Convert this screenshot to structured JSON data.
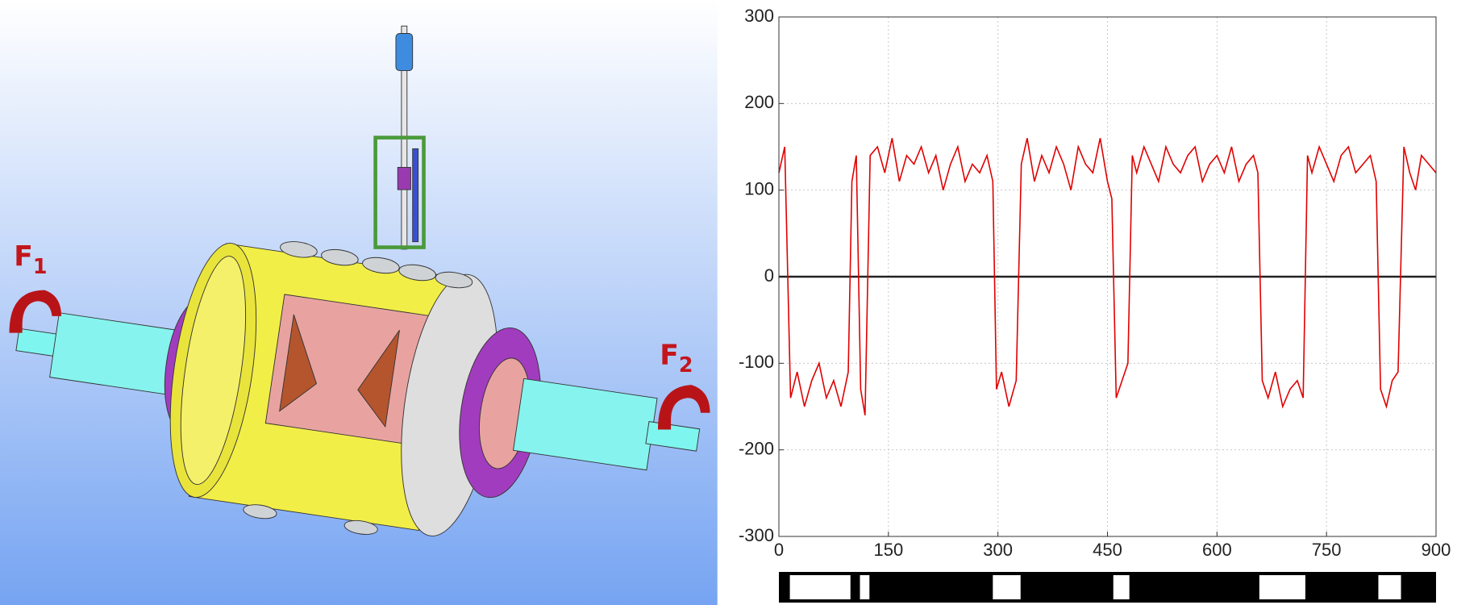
{
  "illustration": {
    "labels": [
      {
        "letter": "F",
        "subscript": "1"
      },
      {
        "letter": "F",
        "subscript": "2"
      }
    ]
  },
  "chart_data": {
    "type": "line",
    "x": [
      0,
      8,
      16,
      25,
      35,
      45,
      55,
      65,
      75,
      85,
      95,
      100,
      106,
      112,
      118,
      125,
      135,
      145,
      155,
      165,
      175,
      185,
      195,
      205,
      215,
      225,
      235,
      245,
      255,
      265,
      275,
      285,
      293,
      298,
      305,
      315,
      325,
      332,
      340,
      350,
      360,
      370,
      380,
      390,
      400,
      410,
      420,
      430,
      440,
      450,
      456,
      462,
      470,
      478,
      484,
      490,
      500,
      510,
      520,
      530,
      540,
      550,
      560,
      570,
      580,
      590,
      600,
      610,
      620,
      630,
      640,
      650,
      656,
      662,
      670,
      680,
      690,
      700,
      710,
      718,
      724,
      730,
      740,
      750,
      760,
      770,
      780,
      790,
      800,
      810,
      818,
      824,
      832,
      840,
      848,
      856,
      864,
      872,
      880,
      890,
      900
    ],
    "series": [
      {
        "color": "#e00000",
        "values": [
          120,
          150,
          -140,
          -110,
          -150,
          -120,
          -100,
          -140,
          -120,
          -150,
          -110,
          110,
          140,
          -130,
          -160,
          140,
          150,
          120,
          160,
          110,
          140,
          130,
          150,
          120,
          140,
          100,
          130,
          150,
          110,
          130,
          120,
          140,
          110,
          -130,
          -110,
          -150,
          -120,
          130,
          160,
          110,
          140,
          120,
          150,
          130,
          100,
          150,
          130,
          120,
          160,
          110,
          90,
          -140,
          -120,
          -100,
          140,
          120,
          150,
          130,
          110,
          150,
          130,
          120,
          140,
          150,
          110,
          130,
          140,
          120,
          150,
          110,
          130,
          140,
          120,
          -120,
          -140,
          -110,
          -150,
          -130,
          -120,
          -140,
          140,
          120,
          150,
          130,
          110,
          140,
          150,
          120,
          130,
          140,
          110,
          -130,
          -150,
          -120,
          -110,
          150,
          120,
          100,
          140,
          130,
          120
        ]
      }
    ],
    "xlim": [
      0,
      900
    ],
    "xticks": [
      0,
      150,
      300,
      450,
      600,
      750,
      900
    ],
    "ylim": [
      -300,
      300
    ],
    "yticks": [
      -300,
      -200,
      -100,
      0,
      100,
      200,
      300
    ],
    "grid": true,
    "low_intervals": [
      [
        15,
        98
      ],
      [
        111,
        124
      ],
      [
        293,
        331
      ],
      [
        458,
        480
      ],
      [
        658,
        721
      ],
      [
        821,
        852
      ]
    ]
  }
}
